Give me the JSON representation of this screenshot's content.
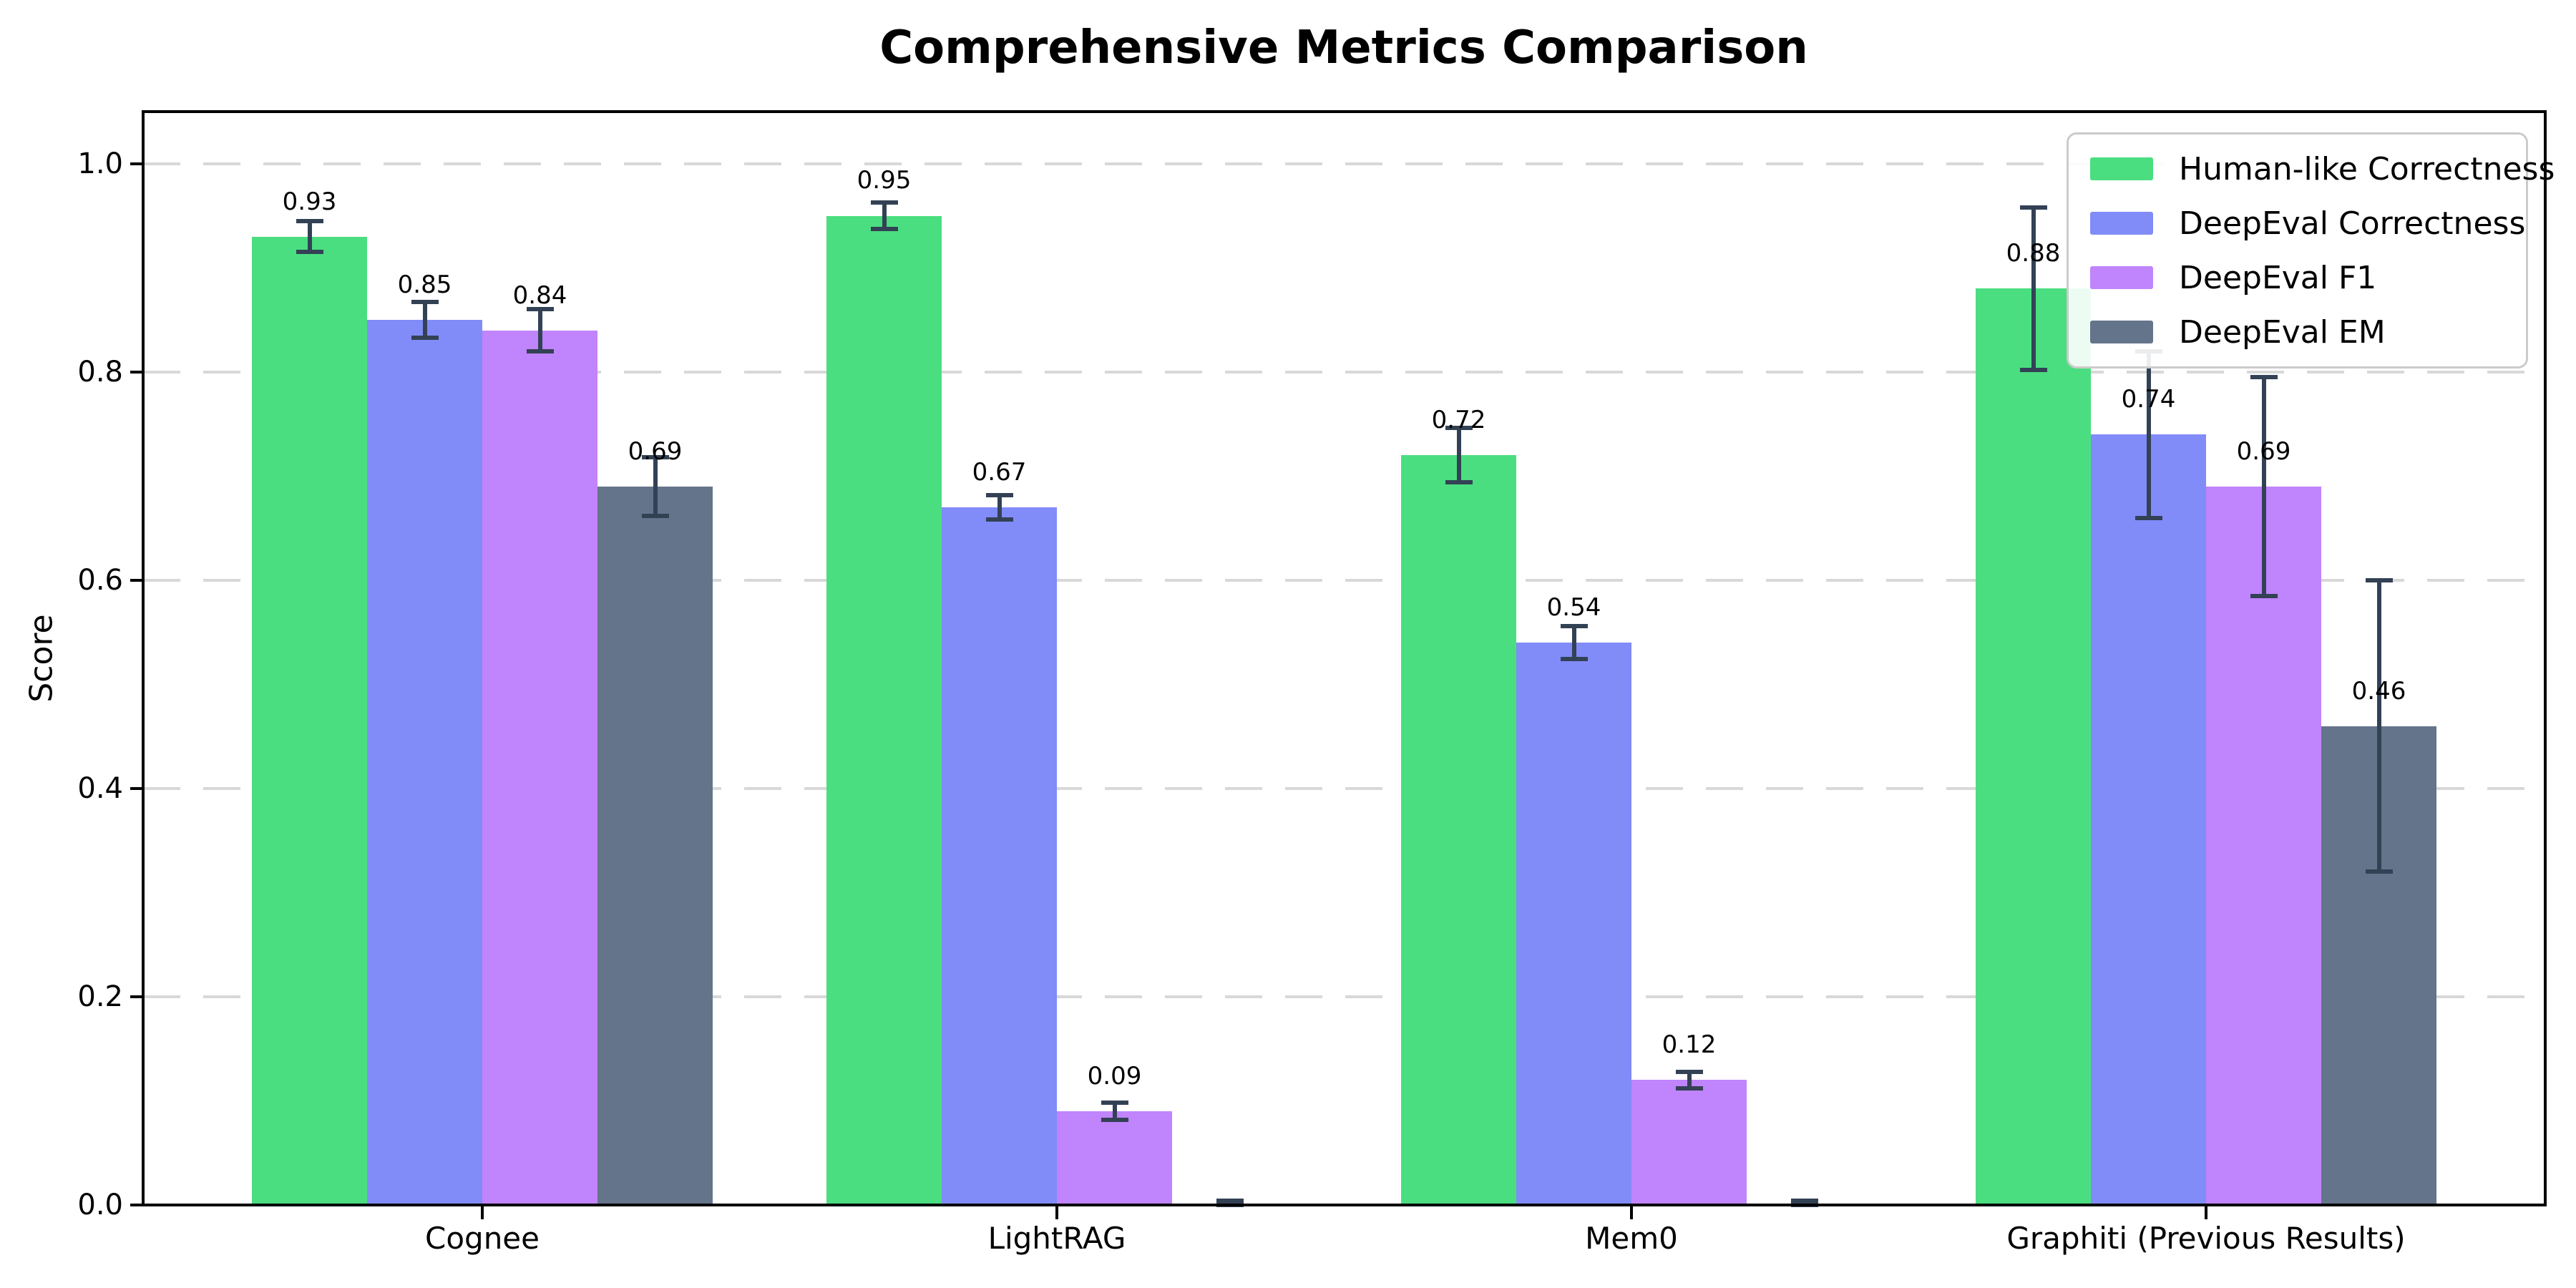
{
  "chart_data": {
    "type": "bar",
    "title": "Comprehensive Metrics Comparison",
    "xlabel": "",
    "ylabel": "Score",
    "ylim": [
      0,
      1.05
    ],
    "ytick_labels": [
      "0.0",
      "0.2",
      "0.4",
      "0.6",
      "0.8",
      "1.0"
    ],
    "grid": "horizontal-dashed",
    "legend_position": "upper-right",
    "categories": [
      "Cognee",
      "LightRAG",
      "Mem0",
      "Graphiti (Previous Results)"
    ],
    "series": [
      {
        "name": "Human-like Correctness",
        "color": "#4ade80",
        "values": [
          0.93,
          0.95,
          0.72,
          0.88
        ],
        "errors": [
          0.015,
          0.013,
          0.026,
          0.078
        ],
        "labels": [
          "0.93",
          "0.95",
          "0.72",
          "0.88"
        ]
      },
      {
        "name": "DeepEval Correctness",
        "color": "#818cf8",
        "values": [
          0.85,
          0.67,
          0.54,
          0.74
        ],
        "errors": [
          0.017,
          0.012,
          0.016,
          0.08
        ],
        "labels": [
          "0.85",
          "0.67",
          "0.54",
          "0.74"
        ]
      },
      {
        "name": "DeepEval F1",
        "color": "#c084fc",
        "values": [
          0.84,
          0.09,
          0.12,
          0.69
        ],
        "errors": [
          0.02,
          0.008,
          0.008,
          0.105
        ],
        "labels": [
          "0.84",
          "0.09",
          "0.12",
          "0.69"
        ]
      },
      {
        "name": "DeepEval EM",
        "color": "#64748b",
        "values": [
          0.69,
          0.0,
          0.0,
          0.46
        ],
        "errors": [
          0.028,
          0.004,
          0.004,
          0.14
        ],
        "labels": [
          "0.69",
          "",
          "",
          "0.46"
        ]
      }
    ],
    "colors": {
      "error_bar": "#334155",
      "gridline": "#d8d8d8",
      "axis": "#000000",
      "background": "#ffffff"
    }
  }
}
